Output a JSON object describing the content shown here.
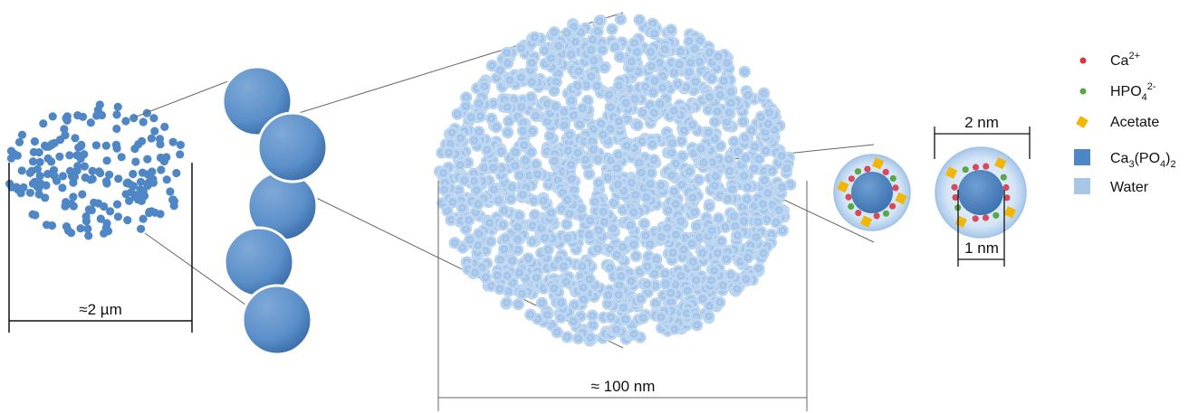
{
  "scale_labels": {
    "micro": "≈2 µm",
    "nano": "≈ 100 nm",
    "outer": "2 nm",
    "core": "1 nm"
  },
  "legend": [
    {
      "id": "ca",
      "text": "Ca",
      "sup": "2+",
      "color": "#e0343a",
      "icon": "dot-icon"
    },
    {
      "id": "hpo4",
      "text": "HPO",
      "sub": "4",
      "sup": "2-",
      "color": "#5aa845",
      "icon": "dot-icon"
    },
    {
      "id": "acetate",
      "text": "Acetate",
      "color": "#f2b705",
      "icon": "diamond-icon"
    },
    {
      "id": "capo",
      "text": "Ca",
      "sub": "3",
      "text2": "(PO",
      "sub2": "4",
      "text3": ")",
      "sub3": "2",
      "color": "#4e86c6",
      "icon": "square-icon"
    },
    {
      "id": "water",
      "text": "Water",
      "color": "#a7c6e8",
      "icon": "square-icon"
    }
  ],
  "colors": {
    "dot_blue": "#4e86c6",
    "sphere_blue": "#5b8fc9",
    "water": "#b9d3ee",
    "water_edge": "#8fb5df",
    "line": "#555555"
  }
}
